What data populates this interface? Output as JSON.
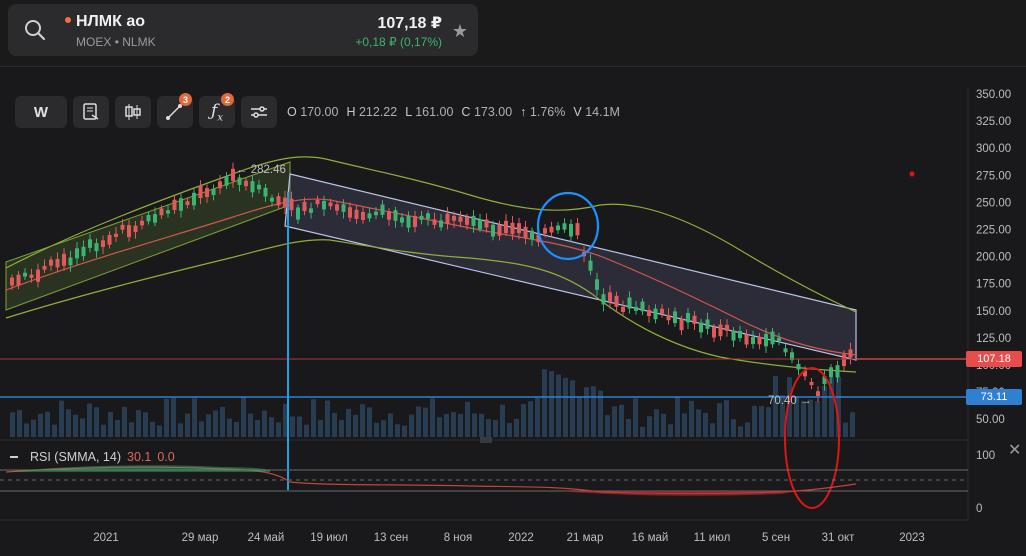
{
  "ticker": {
    "name": "НЛМК ао",
    "exchange": "MOEX",
    "separator": "•",
    "code": "NLMK",
    "price": "107,18 ₽",
    "change": "+0,18 ₽ (0,17%)",
    "status_color": "#ff6b3d"
  },
  "toolbar": {
    "interval_label": "W",
    "drawings_badge": "3",
    "indicators_badge": "2",
    "icons": [
      "notes-icon",
      "candles-icon",
      "drawing-tools-icon",
      "indicators-icon",
      "settings-icon"
    ]
  },
  "ohlc": {
    "o_label": "O",
    "o_value": "170.00",
    "h_label": "H",
    "h_value": "212.22",
    "l_label": "L",
    "l_value": "161.00",
    "c_label": "C",
    "c_value": "173.00",
    "change_arrow": "↑",
    "change_value": "1.76%",
    "v_label": "V",
    "v_value": "14.1M"
  },
  "price_axis": [
    "350.00",
    "325.00",
    "300.00",
    "275.00",
    "250.00",
    "225.00",
    "200.00",
    "175.00",
    "150.00",
    "125.00",
    "100.00",
    "75.00",
    "50.00"
  ],
  "time_axis": [
    "2021",
    "29 мар",
    "24 май",
    "19 июл",
    "13 сен",
    "8 ноя",
    "2022",
    "21 мар",
    "16 май",
    "11 июл",
    "5 сен",
    "31 окт",
    "2023"
  ],
  "price_tags": {
    "last": "107.18",
    "last_color": "#e84c4c",
    "level": "73.11",
    "level_color": "#2f80d1"
  },
  "annotations": {
    "high": "← 282.46",
    "low": "70.40 →"
  },
  "rsi": {
    "title": "RSI (SMMA, 14)",
    "value1": "30.1",
    "value2": "0.0",
    "axis_top": "100",
    "axis_bottom": "0"
  },
  "colors": {
    "up": "#3cb371",
    "down": "#e05a5a",
    "channel": "#b8c3e8",
    "band": "#8fae3a",
    "circle_blue": "#1e90ff",
    "circle_red": "#e01515",
    "vline": "#1fa0e0"
  }
}
